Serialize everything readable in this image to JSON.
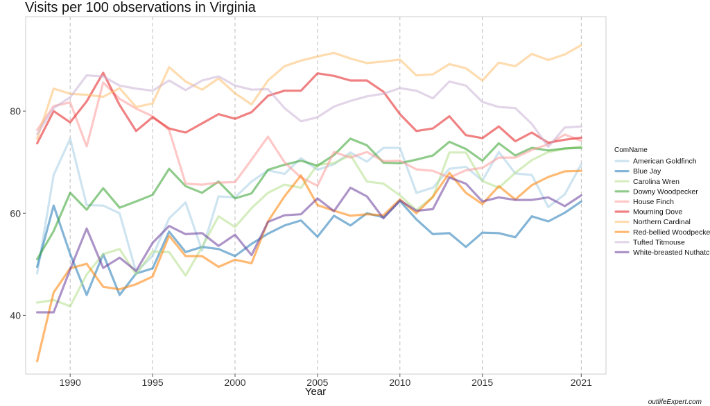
{
  "chart_data": {
    "type": "line",
    "title": "Visits per 100 observations in Virginia",
    "xlabel": "Year",
    "ylabel": "",
    "xlim": [
      1987.3,
      2022.5
    ],
    "ylim": [
      28.5,
      98.5
    ],
    "x_ticks": [
      1990,
      1995,
      2000,
      2005,
      2010,
      2015,
      2021
    ],
    "y_ticks": [
      40,
      60,
      80
    ],
    "grid": {
      "vertical": "dashed",
      "horizontal": "none"
    },
    "legend": {
      "title": "ComName",
      "placement": "right"
    },
    "x": [
      1988,
      1989,
      1990,
      1991,
      1992,
      1993,
      1994,
      1995,
      1996,
      1997,
      1998,
      1999,
      2000,
      2001,
      2002,
      2003,
      2004,
      2005,
      2006,
      2007,
      2008,
      2009,
      2010,
      2011,
      2012,
      2013,
      2014,
      2015,
      2016,
      2017,
      2018,
      2019,
      2020,
      2021
    ],
    "series": [
      {
        "name": "American Goldfinch",
        "color": "#a6cee3",
        "values": [
          48.2,
          67.5,
          74.6,
          61.6,
          61.5,
          60.0,
          48.5,
          51.6,
          59.0,
          62.1,
          52.7,
          63.3,
          63.1,
          66.2,
          68.4,
          67.7,
          70.8,
          68.5,
          69.6,
          71.9,
          70.1,
          72.8,
          72.8,
          64.0,
          65.0,
          68.7,
          69.1,
          66.4,
          72.0,
          67.8,
          67.5,
          61.2,
          63.7,
          69.6
        ]
      },
      {
        "name": "Blue Jay",
        "color": "#1f78b4",
        "values": [
          49.5,
          61.5,
          52.0,
          44.0,
          52.0,
          44.0,
          48.2,
          49.2,
          56.4,
          52.4,
          53.4,
          53.0,
          51.6,
          54.0,
          56.0,
          57.6,
          58.6,
          55.4,
          59.5,
          57.6,
          60.0,
          59.2,
          62.4,
          58.8,
          55.9,
          56.1,
          53.4,
          56.2,
          56.1,
          55.3,
          59.4,
          58.4,
          60.1,
          62.3
        ]
      },
      {
        "name": "Carolina Wren",
        "color": "#b2df8a",
        "values": [
          42.5,
          43.0,
          41.8,
          48.0,
          52.0,
          53.0,
          48.0,
          52.5,
          52.4,
          47.8,
          53.4,
          59.4,
          57.3,
          61.0,
          64.0,
          65.6,
          65.0,
          69.5,
          69.8,
          71.4,
          66.2,
          65.8,
          63.5,
          60.6,
          63.2,
          71.9,
          71.9,
          66.3,
          65.0,
          67.9,
          70.4,
          72.0,
          72.6,
          73.1
        ]
      },
      {
        "name": "Downy Woodpecker",
        "color": "#33a02c",
        "values": [
          51.0,
          56.5,
          64.0,
          60.7,
          64.9,
          61.1,
          62.3,
          63.6,
          68.7,
          65.3,
          64.0,
          66.2,
          62.9,
          63.9,
          68.5,
          69.5,
          70.3,
          69.3,
          71.4,
          74.6,
          73.3,
          69.9,
          69.8,
          70.5,
          71.3,
          74.0,
          72.6,
          70.3,
          73.7,
          71.3,
          72.8,
          72.3,
          72.7,
          72.8
        ]
      },
      {
        "name": "House Finch",
        "color": "#fb9a99",
        "values": [
          76.3,
          81.0,
          81.7,
          73.1,
          85.6,
          82.4,
          80.5,
          79.0,
          76.3,
          65.8,
          65.6,
          66.0,
          66.1,
          70.5,
          75.0,
          70.0,
          67.0,
          65.4,
          72.0,
          70.9,
          72.0,
          70.2,
          70.3,
          68.6,
          68.3,
          67.0,
          68.4,
          68.9,
          70.9,
          70.9,
          72.4,
          73.5,
          75.4,
          74.2
        ]
      },
      {
        "name": "Mourning Dove",
        "color": "#e31a1c",
        "values": [
          73.7,
          80.0,
          77.8,
          81.9,
          87.5,
          81.2,
          76.1,
          78.8,
          76.6,
          75.8,
          77.6,
          79.4,
          78.5,
          79.8,
          83.0,
          84.0,
          84.0,
          87.4,
          86.9,
          86.0,
          86.0,
          83.8,
          79.4,
          76.1,
          76.6,
          79.0,
          75.3,
          74.7,
          77.0,
          74.1,
          75.8,
          73.8,
          74.4,
          74.8
        ]
      },
      {
        "name": "Northern Cardinal",
        "color": "#fdbf6f",
        "values": [
          74.6,
          84.4,
          83.4,
          83.2,
          82.8,
          84.5,
          80.8,
          81.5,
          88.6,
          85.8,
          84.2,
          86.4,
          83.5,
          81.3,
          86.0,
          88.8,
          89.9,
          90.7,
          91.4,
          90.3,
          89.4,
          89.7,
          90.1,
          87.0,
          87.2,
          89.2,
          88.4,
          86.0,
          89.5,
          88.8,
          91.2,
          90.0,
          91.1,
          92.9
        ]
      },
      {
        "name": "Red-bellied Woodpecker",
        "color": "#ff7f00",
        "values": [
          31.0,
          44.5,
          49.2,
          50.1,
          45.6,
          45.1,
          46.1,
          47.6,
          55.6,
          51.6,
          51.6,
          49.5,
          50.9,
          50.2,
          58.4,
          63.3,
          67.4,
          61.6,
          60.5,
          59.5,
          59.8,
          59.6,
          62.7,
          60.0,
          63.2,
          67.9,
          64.0,
          61.8,
          65.3,
          62.7,
          65.5,
          67.1,
          68.2,
          68.3
        ]
      },
      {
        "name": "Tufted Titmouse",
        "color": "#cab2d6",
        "values": [
          75.5,
          80.6,
          82.7,
          87.0,
          86.8,
          85.0,
          84.4,
          84.0,
          86.0,
          84.1,
          86.0,
          86.8,
          85.0,
          84.2,
          84.3,
          80.6,
          78.0,
          78.8,
          80.9,
          82.0,
          82.9,
          83.4,
          84.5,
          84.0,
          82.5,
          85.8,
          85.0,
          81.8,
          80.8,
          80.6,
          77.5,
          73.0,
          76.8,
          77.0
        ]
      },
      {
        "name": "White-breasted Nuthatch",
        "color": "#6a3d9a",
        "values": [
          40.6,
          40.6,
          49.0,
          57.0,
          49.3,
          51.3,
          48.7,
          54.2,
          57.5,
          55.9,
          56.1,
          53.6,
          55.8,
          51.8,
          58.3,
          59.6,
          59.8,
          62.9,
          60.4,
          65.0,
          63.3,
          59.0,
          62.5,
          60.5,
          60.8,
          67.0,
          65.8,
          62.3,
          63.1,
          62.6,
          62.6,
          63.1,
          61.4,
          63.5
        ]
      }
    ]
  },
  "watermark": "outlifeExpert.com"
}
